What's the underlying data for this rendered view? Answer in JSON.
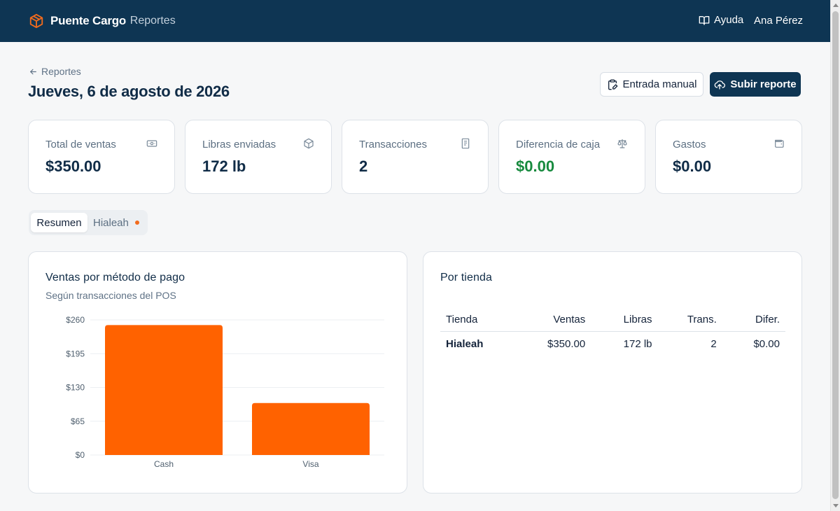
{
  "app": {
    "brand": "Puente Cargo",
    "section": "· Reportes",
    "help_label": "Ayuda",
    "user_name": "Ana Pérez",
    "brand_color": "#0e3553",
    "accent_color": "#ff6200"
  },
  "header": {
    "back_label": "Reportes",
    "title": "Jueves, 6 de agosto de 2026",
    "manual_entry_label": "Entrada manual",
    "upload_label": "Subir reporte"
  },
  "stats": [
    {
      "label": "Total de ventas",
      "value": "$350.00",
      "icon": "cash-icon"
    },
    {
      "label": "Libras enviadas",
      "value": "172 lb",
      "icon": "package-icon"
    },
    {
      "label": "Transacciones",
      "value": "2",
      "icon": "receipt-icon"
    },
    {
      "label": "Diferencia de caja",
      "value": "$0.00",
      "icon": "scale-icon",
      "color": "#178a3e"
    },
    {
      "label": "Gastos",
      "value": "$0.00",
      "icon": "wallet-icon"
    }
  ],
  "tabs": {
    "active": "Resumen",
    "second": "Hialeah"
  },
  "payment_chart": {
    "title": "Ventas por método de pago",
    "subtitle": "Según transacciones del POS"
  },
  "chart_data": {
    "type": "bar",
    "categories": [
      "Cash",
      "Visa"
    ],
    "values": [
      250,
      100
    ],
    "ylim": [
      0,
      260
    ],
    "yticks": [
      "$0",
      "$65",
      "$130",
      "$195",
      "$260"
    ],
    "ytick_values": [
      0,
      65,
      130,
      195,
      260
    ],
    "grid": true,
    "bar_color": "#ff6200"
  },
  "stores": {
    "title": "Por tienda",
    "columns": [
      "Tienda",
      "Ventas",
      "Libras",
      "Trans.",
      "Difer."
    ],
    "rows": [
      [
        "Hialeah",
        "$350.00",
        "172 lb",
        "2",
        "$0.00"
      ]
    ]
  }
}
